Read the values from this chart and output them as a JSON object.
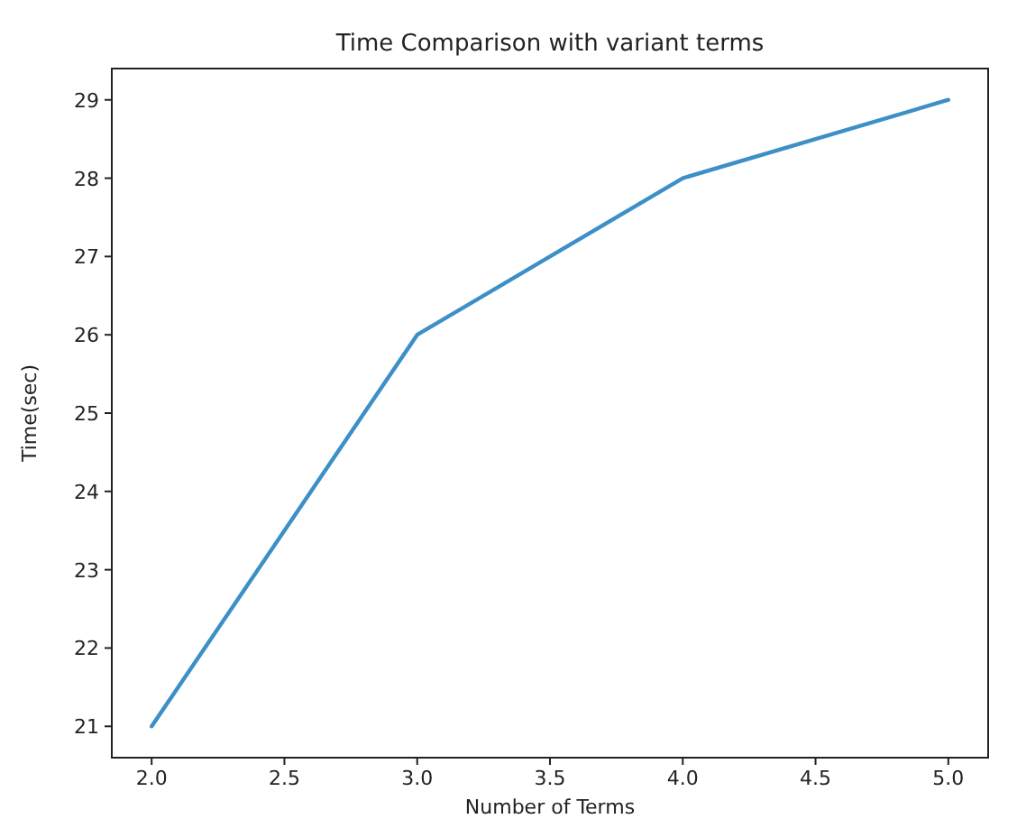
{
  "chart_data": {
    "type": "line",
    "title": "Time Comparison with variant terms",
    "xlabel": "Number of Terms",
    "ylabel": "Time(sec)",
    "x": [
      2,
      3,
      4,
      5
    ],
    "series": [
      {
        "color": "#3d8fc8",
        "values": [
          21,
          26,
          28,
          29
        ]
      }
    ],
    "xlim": [
      1.85,
      5.15
    ],
    "xticks": [
      {
        "value": 2,
        "label": "2.0"
      },
      {
        "value": 2.5,
        "label": "2.5"
      },
      {
        "value": 3,
        "label": "3.0"
      },
      {
        "value": 3.5,
        "label": "3.5"
      },
      {
        "value": 4,
        "label": "4.0"
      },
      {
        "value": 4.5,
        "label": "4.5"
      },
      {
        "value": 5,
        "label": "5.0"
      }
    ],
    "ylim": [
      20.6,
      29.4
    ],
    "yticks": [
      21,
      22,
      23,
      24,
      25,
      26,
      27,
      28,
      29
    ],
    "grid": false
  }
}
